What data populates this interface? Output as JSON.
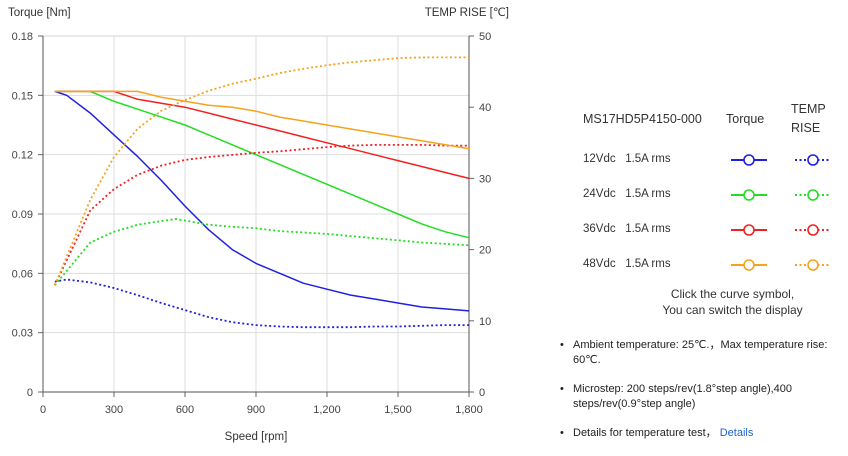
{
  "chart_data": {
    "type": "line",
    "y_left_label": "Torque  [Nm]",
    "y_right_label": "TEMP RISE [℃]",
    "x_label": "Speed [rpm]",
    "x_range": [
      0,
      1800
    ],
    "x_ticks": [
      "0",
      "300",
      "600",
      "900",
      "1,200",
      "1,500",
      "1,800"
    ],
    "y_left_range": [
      0,
      0.18
    ],
    "y_left_ticks": [
      "0",
      "0.03",
      "0.06",
      "0.09",
      "0.12",
      "0.15",
      "0.18"
    ],
    "y_right_range": [
      0,
      50
    ],
    "y_right_ticks": [
      "0",
      "10",
      "20",
      "30",
      "40",
      "50"
    ],
    "series": [
      {
        "name": "12Vdc 1.5A rms",
        "color": "#2020e0",
        "kind": "torque",
        "points": [
          [
            50,
            0.152
          ],
          [
            100,
            0.15
          ],
          [
            200,
            0.141
          ],
          [
            300,
            0.13
          ],
          [
            400,
            0.119
          ],
          [
            500,
            0.107
          ],
          [
            600,
            0.094
          ],
          [
            700,
            0.082
          ],
          [
            800,
            0.072
          ],
          [
            900,
            0.065
          ],
          [
            1000,
            0.06
          ],
          [
            1100,
            0.055
          ],
          [
            1200,
            0.052
          ],
          [
            1300,
            0.049
          ],
          [
            1400,
            0.047
          ],
          [
            1500,
            0.045
          ],
          [
            1600,
            0.043
          ],
          [
            1700,
            0.042
          ],
          [
            1800,
            0.041
          ]
        ]
      },
      {
        "name": "12Vdc 1.5A rms",
        "color": "#2020e0",
        "kind": "temp",
        "points": [
          [
            50,
            15.5
          ],
          [
            100,
            15.8
          ],
          [
            200,
            15.4
          ],
          [
            300,
            14.6
          ],
          [
            400,
            13.6
          ],
          [
            500,
            12.5
          ],
          [
            600,
            11.5
          ],
          [
            700,
            10.5
          ],
          [
            800,
            9.8
          ],
          [
            900,
            9.4
          ],
          [
            1000,
            9.2
          ],
          [
            1100,
            9.1
          ],
          [
            1200,
            9.1
          ],
          [
            1300,
            9.1
          ],
          [
            1400,
            9.2
          ],
          [
            1500,
            9.2
          ],
          [
            1600,
            9.3
          ],
          [
            1700,
            9.4
          ],
          [
            1800,
            9.4
          ]
        ]
      },
      {
        "name": "24Vdc 1.5A rms",
        "color": "#22dd22",
        "kind": "torque",
        "points": [
          [
            50,
            0.152
          ],
          [
            200,
            0.152
          ],
          [
            300,
            0.147
          ],
          [
            400,
            0.143
          ],
          [
            500,
            0.139
          ],
          [
            600,
            0.135
          ],
          [
            700,
            0.13
          ],
          [
            800,
            0.125
          ],
          [
            900,
            0.12
          ],
          [
            1000,
            0.115
          ],
          [
            1100,
            0.11
          ],
          [
            1200,
            0.105
          ],
          [
            1300,
            0.1
          ],
          [
            1400,
            0.095
          ],
          [
            1500,
            0.09
          ],
          [
            1600,
            0.085
          ],
          [
            1700,
            0.081
          ],
          [
            1800,
            0.078
          ]
        ]
      },
      {
        "name": "24Vdc 1.5A rms",
        "color": "#22dd22",
        "kind": "temp",
        "points": [
          [
            50,
            15
          ],
          [
            100,
            17
          ],
          [
            150,
            19
          ],
          [
            200,
            21
          ],
          [
            300,
            22.5
          ],
          [
            400,
            23.5
          ],
          [
            500,
            24
          ],
          [
            560,
            24.3
          ],
          [
            700,
            23.5
          ],
          [
            800,
            23.2
          ],
          [
            900,
            23
          ],
          [
            1000,
            22.6
          ],
          [
            1100,
            22.4
          ],
          [
            1200,
            22.2
          ],
          [
            1300,
            21.9
          ],
          [
            1400,
            21.6
          ],
          [
            1500,
            21.3
          ],
          [
            1600,
            21
          ],
          [
            1700,
            20.8
          ],
          [
            1800,
            20.6
          ]
        ]
      },
      {
        "name": "36Vdc 1.5A rms",
        "color": "#ee2222",
        "kind": "torque",
        "points": [
          [
            50,
            0.152
          ],
          [
            300,
            0.152
          ],
          [
            400,
            0.148
          ],
          [
            500,
            0.146
          ],
          [
            600,
            0.144
          ],
          [
            700,
            0.141
          ],
          [
            800,
            0.138
          ],
          [
            900,
            0.135
          ],
          [
            1000,
            0.132
          ],
          [
            1100,
            0.129
          ],
          [
            1200,
            0.126
          ],
          [
            1300,
            0.123
          ],
          [
            1400,
            0.12
          ],
          [
            1500,
            0.117
          ],
          [
            1600,
            0.114
          ],
          [
            1700,
            0.111
          ],
          [
            1800,
            0.108
          ]
        ]
      },
      {
        "name": "36Vdc 1.5A rms",
        "color": "#ee2222",
        "kind": "temp",
        "points": [
          [
            50,
            15
          ],
          [
            100,
            18.5
          ],
          [
            150,
            22
          ],
          [
            200,
            25.5
          ],
          [
            300,
            28.5
          ],
          [
            400,
            30.5
          ],
          [
            500,
            31.8
          ],
          [
            600,
            32.6
          ],
          [
            700,
            33
          ],
          [
            800,
            33.3
          ],
          [
            900,
            33.6
          ],
          [
            1000,
            33.8
          ],
          [
            1100,
            34.1
          ],
          [
            1200,
            34.4
          ],
          [
            1300,
            34.6
          ],
          [
            1400,
            34.7
          ],
          [
            1500,
            34.7
          ],
          [
            1600,
            34.7
          ],
          [
            1700,
            34.6
          ],
          [
            1800,
            34.6
          ]
        ]
      },
      {
        "name": "48Vdc 1.5A rms",
        "color": "#f7a21b",
        "kind": "torque",
        "points": [
          [
            50,
            0.152
          ],
          [
            400,
            0.152
          ],
          [
            500,
            0.149
          ],
          [
            600,
            0.147
          ],
          [
            700,
            0.145
          ],
          [
            800,
            0.144
          ],
          [
            900,
            0.142
          ],
          [
            1000,
            0.139
          ],
          [
            1100,
            0.137
          ],
          [
            1200,
            0.135
          ],
          [
            1300,
            0.133
          ],
          [
            1400,
            0.131
          ],
          [
            1500,
            0.129
          ],
          [
            1600,
            0.127
          ],
          [
            1700,
            0.125
          ],
          [
            1800,
            0.123
          ]
        ]
      },
      {
        "name": "48Vdc 1.5A rms",
        "color": "#f7a21b",
        "kind": "temp",
        "points": [
          [
            50,
            15
          ],
          [
            100,
            19
          ],
          [
            150,
            23
          ],
          [
            200,
            27
          ],
          [
            300,
            33
          ],
          [
            400,
            37
          ],
          [
            500,
            39.5
          ],
          [
            600,
            41
          ],
          [
            700,
            42.3
          ],
          [
            800,
            43.3
          ],
          [
            900,
            44
          ],
          [
            1000,
            44.8
          ],
          [
            1100,
            45.4
          ],
          [
            1200,
            45.9
          ],
          [
            1300,
            46.3
          ],
          [
            1400,
            46.6
          ],
          [
            1500,
            46.9
          ],
          [
            1600,
            47
          ],
          [
            1700,
            47
          ],
          [
            1800,
            47
          ]
        ]
      }
    ]
  },
  "legend": {
    "model": "MS17HD5P4150-000",
    "col_torque": "Torque",
    "col_temp_line1": "TEMP",
    "col_temp_line2": "RISE",
    "rows": [
      {
        "label": "12Vdc   1.5A rms",
        "color": "#2020e0"
      },
      {
        "label": "24Vdc   1.5A rms",
        "color": "#22dd22"
      },
      {
        "label": "36Vdc   1.5A rms",
        "color": "#ee2222"
      },
      {
        "label": "48Vdc   1.5A rms",
        "color": "#f7a21b"
      }
    ],
    "hint_line1": "Click the curve symbol,",
    "hint_line2": "You can switch the display"
  },
  "notes": {
    "ambient": "Ambient temperature: 25℃.，Max temperature rise: 60℃.",
    "microstep": "Microstep: 200 steps/rev(1.8°step angle),400 steps/rev(0.9°step angle)",
    "details_text": "Details for temperature test，",
    "details_link": "Details"
  }
}
